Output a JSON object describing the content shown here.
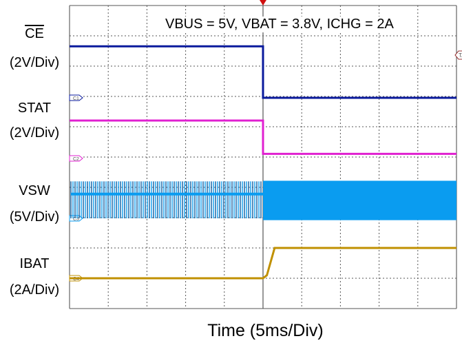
{
  "chart_data": {
    "type": "line",
    "title": "VBUS = 5V, VBAT = 3.8V, ICHG = 2A",
    "xlabel": "Time (5ms/Div)",
    "x_unit": "ms",
    "xlim": [
      -25,
      25
    ],
    "divisions": {
      "horizontal": 10,
      "vertical": 10
    },
    "grid": true,
    "trigger_time": 0,
    "series": [
      {
        "name": "CE",
        "scale": "(2V/Div)",
        "unit": "V",
        "color": "#0a1a9c",
        "marker": "C1",
        "x": [
          -25,
          0,
          0,
          25
        ],
        "y": [
          3.4,
          3.4,
          0,
          0
        ]
      },
      {
        "name": "STAT",
        "scale": "(2V/Div)",
        "unit": "V",
        "color": "#e020d0",
        "marker": "C2",
        "x": [
          -25,
          0,
          0,
          25
        ],
        "y": [
          2.5,
          2.5,
          0.3,
          0.3
        ]
      },
      {
        "name": "VSW",
        "scale": "(5V/Div)",
        "unit": "V",
        "color": "#0a9cf0",
        "marker": "C3",
        "switching": true,
        "low": 0,
        "high_before": 6.1,
        "high_after": 6.2,
        "low_after": -0.3
      },
      {
        "name": "IBAT",
        "scale": "(2A/Div)",
        "unit": "A",
        "color": "#c09000",
        "marker": "C4",
        "x": [
          -25,
          0,
          0.5,
          1.5,
          25
        ],
        "y": [
          0,
          0,
          0.2,
          2.0,
          2.0
        ]
      }
    ],
    "trigger_marker": "TA"
  }
}
